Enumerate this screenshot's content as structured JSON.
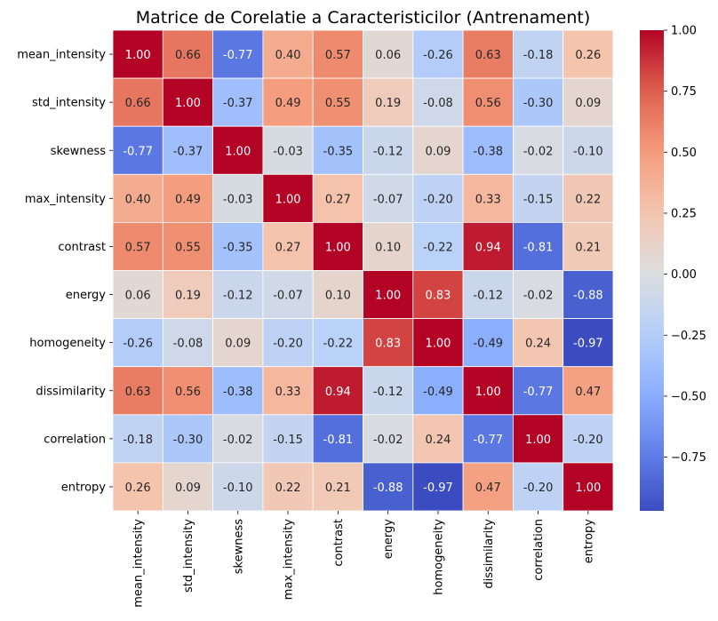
{
  "chart_data": {
    "type": "heatmap",
    "title": "Matrice de Corelatie a Caracteristicilor (Antrenament)",
    "xlabel": "",
    "ylabel": "",
    "labels": [
      "mean_intensity",
      "std_intensity",
      "skewness",
      "max_intensity",
      "contrast",
      "energy",
      "homogeneity",
      "dissimilarity",
      "correlation",
      "entropy"
    ],
    "values": [
      [
        1.0,
        0.66,
        -0.77,
        0.4,
        0.57,
        0.06,
        -0.26,
        0.63,
        -0.18,
        0.26
      ],
      [
        0.66,
        1.0,
        -0.37,
        0.49,
        0.55,
        0.19,
        -0.08,
        0.56,
        -0.3,
        0.09
      ],
      [
        -0.77,
        -0.37,
        1.0,
        -0.03,
        -0.35,
        -0.12,
        0.09,
        -0.38,
        -0.02,
        -0.1
      ],
      [
        0.4,
        0.49,
        -0.03,
        1.0,
        0.27,
        -0.07,
        -0.2,
        0.33,
        -0.15,
        0.22
      ],
      [
        0.57,
        0.55,
        -0.35,
        0.27,
        1.0,
        0.1,
        -0.22,
        0.94,
        -0.81,
        0.21
      ],
      [
        0.06,
        0.19,
        -0.12,
        -0.07,
        0.1,
        1.0,
        0.83,
        -0.12,
        -0.02,
        -0.88
      ],
      [
        -0.26,
        -0.08,
        0.09,
        -0.2,
        -0.22,
        0.83,
        1.0,
        -0.49,
        0.24,
        -0.97
      ],
      [
        0.63,
        0.56,
        -0.38,
        0.33,
        0.94,
        -0.12,
        -0.49,
        1.0,
        -0.77,
        0.47
      ],
      [
        -0.18,
        -0.3,
        -0.02,
        -0.15,
        -0.81,
        -0.02,
        0.24,
        -0.77,
        1.0,
        -0.2
      ],
      [
        0.26,
        0.09,
        -0.1,
        0.22,
        0.21,
        -0.88,
        -0.97,
        0.47,
        -0.2,
        1.0
      ]
    ],
    "colorbar": {
      "min": -0.97,
      "max": 1.0,
      "ticks": [
        "1.00",
        "0.75",
        "0.50",
        "0.25",
        "0.00",
        "−0.25",
        "−0.50",
        "−0.75"
      ],
      "tick_values": [
        1.0,
        0.75,
        0.5,
        0.25,
        0.0,
        -0.25,
        -0.5,
        -0.75
      ],
      "colormap": "coolwarm"
    },
    "grid": true
  }
}
